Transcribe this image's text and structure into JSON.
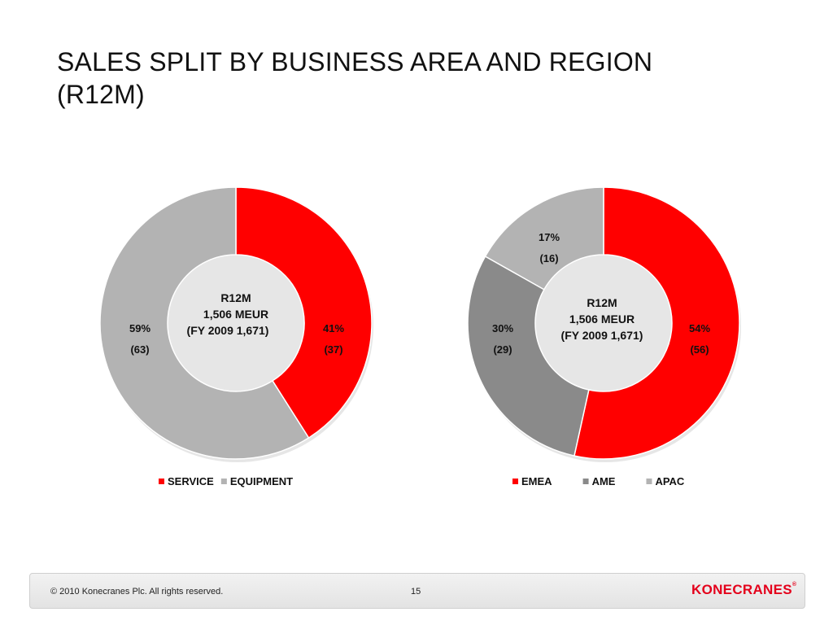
{
  "slide": {
    "title_line1": "SALES SPLIT BY BUSINESS AREA AND REGION",
    "title_line2": "(R12M)"
  },
  "footer": {
    "copyright": "© 2010 Konecranes Plc. All rights reserved.",
    "page_number": "15",
    "logo_text": "KONECRANES",
    "logo_mark": "®"
  },
  "colors": {
    "red": "#ff0000",
    "light_gray": "#b3b3b3",
    "dark_gray": "#8a8a8a"
  },
  "chart_data": [
    {
      "type": "pie",
      "variant": "donut",
      "center_text": [
        "R12M",
        "1,506 MEUR",
        "(FY 2009 1,671)"
      ],
      "slices": [
        {
          "name": "SERVICE",
          "value": 41,
          "label": "41%",
          "prior": "(37)",
          "color": "#ff0000"
        },
        {
          "name": "EQUIPMENT",
          "value": 59,
          "label": "59%",
          "prior": "(63)",
          "color": "#b3b3b3"
        }
      ],
      "legend": "bottom"
    },
    {
      "type": "pie",
      "variant": "donut",
      "center_text": [
        "R12M",
        "1,506 MEUR",
        "(FY 2009 1,671)"
      ],
      "slices": [
        {
          "name": "EMEA",
          "value": 54,
          "label": "54%",
          "prior": "(56)",
          "color": "#ff0000"
        },
        {
          "name": "AME",
          "value": 30,
          "label": "30%",
          "prior": "(29)",
          "color": "#8a8a8a"
        },
        {
          "name": "APAC",
          "value": 17,
          "label": "17%",
          "prior": "(16)",
          "color": "#b3b3b3"
        }
      ],
      "legend": "bottom"
    }
  ]
}
